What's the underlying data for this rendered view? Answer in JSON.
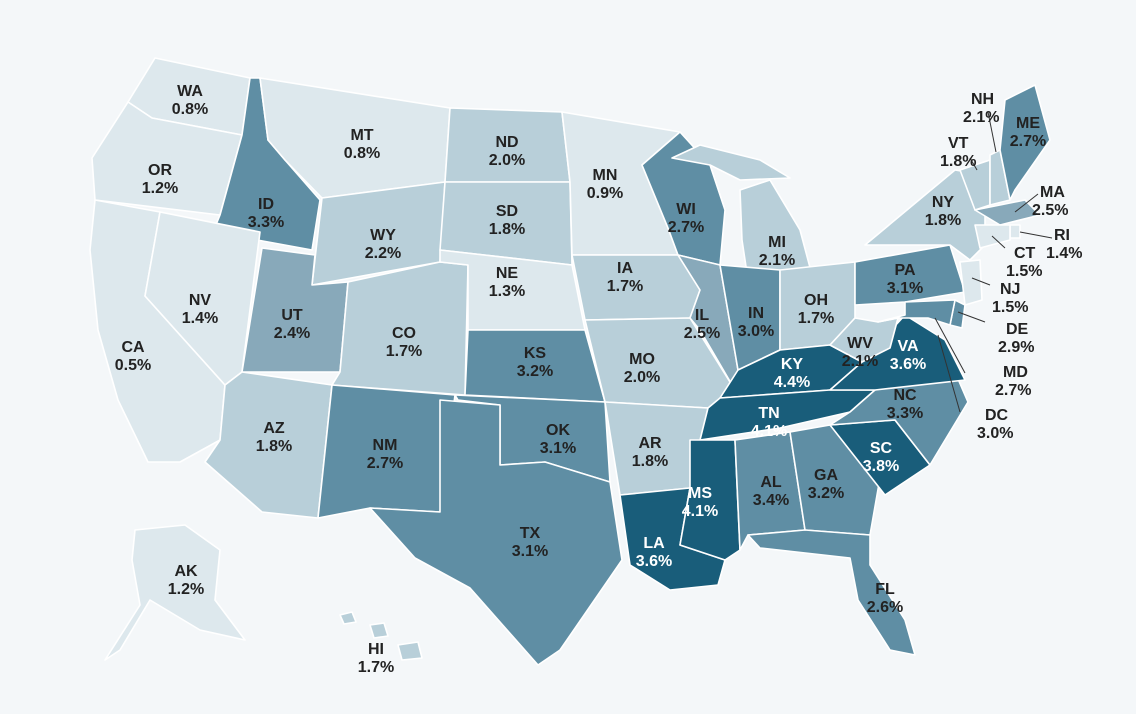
{
  "palette": {
    "level1": "#dde8ed",
    "level2": "#b8cfd9",
    "level3": "#88a9ba",
    "level4": "#5f8ea4",
    "level5": "#195d7a",
    "text_dark": "#222222",
    "text_light": "#ffffff"
  },
  "states": [
    {
      "code": "WA",
      "value": "0.8%",
      "rate": 0.8
    },
    {
      "code": "OR",
      "value": "1.2%",
      "rate": 1.2
    },
    {
      "code": "CA",
      "value": "0.5%",
      "rate": 0.5
    },
    {
      "code": "ID",
      "value": "3.3%",
      "rate": 3.3
    },
    {
      "code": "NV",
      "value": "1.4%",
      "rate": 1.4
    },
    {
      "code": "MT",
      "value": "0.8%",
      "rate": 0.8
    },
    {
      "code": "WY",
      "value": "2.2%",
      "rate": 2.2
    },
    {
      "code": "UT",
      "value": "2.4%",
      "rate": 2.4
    },
    {
      "code": "AZ",
      "value": "1.8%",
      "rate": 1.8
    },
    {
      "code": "CO",
      "value": "1.7%",
      "rate": 1.7
    },
    {
      "code": "NM",
      "value": "2.7%",
      "rate": 2.7
    },
    {
      "code": "ND",
      "value": "2.0%",
      "rate": 2.0
    },
    {
      "code": "SD",
      "value": "1.8%",
      "rate": 1.8
    },
    {
      "code": "NE",
      "value": "1.3%",
      "rate": 1.3
    },
    {
      "code": "KS",
      "value": "3.2%",
      "rate": 3.2
    },
    {
      "code": "OK",
      "value": "3.1%",
      "rate": 3.1
    },
    {
      "code": "TX",
      "value": "3.1%",
      "rate": 3.1
    },
    {
      "code": "MN",
      "value": "0.9%",
      "rate": 0.9
    },
    {
      "code": "IA",
      "value": "1.7%",
      "rate": 1.7
    },
    {
      "code": "MO",
      "value": "2.0%",
      "rate": 2.0
    },
    {
      "code": "AR",
      "value": "1.8%",
      "rate": 1.8
    },
    {
      "code": "LA",
      "value": "3.6%",
      "rate": 3.6
    },
    {
      "code": "WI",
      "value": "2.7%",
      "rate": 2.7
    },
    {
      "code": "IL",
      "value": "2.5%",
      "rate": 2.5
    },
    {
      "code": "MI",
      "value": "2.1%",
      "rate": 2.1
    },
    {
      "code": "IN",
      "value": "3.0%",
      "rate": 3.0
    },
    {
      "code": "OH",
      "value": "1.7%",
      "rate": 1.7
    },
    {
      "code": "KY",
      "value": "4.4%",
      "rate": 4.4
    },
    {
      "code": "TN",
      "value": "4.1%",
      "rate": 4.1
    },
    {
      "code": "MS",
      "value": "4.1%",
      "rate": 4.1
    },
    {
      "code": "AL",
      "value": "3.4%",
      "rate": 3.4
    },
    {
      "code": "GA",
      "value": "3.2%",
      "rate": 3.2
    },
    {
      "code": "FL",
      "value": "2.6%",
      "rate": 2.6
    },
    {
      "code": "SC",
      "value": "3.8%",
      "rate": 3.8
    },
    {
      "code": "NC",
      "value": "3.3%",
      "rate": 3.3
    },
    {
      "code": "VA",
      "value": "3.6%",
      "rate": 3.6
    },
    {
      "code": "WV",
      "value": "2.1%",
      "rate": 2.1
    },
    {
      "code": "PA",
      "value": "3.1%",
      "rate": 3.1
    },
    {
      "code": "NY",
      "value": "1.8%",
      "rate": 1.8
    },
    {
      "code": "VT",
      "value": "1.8%",
      "rate": 1.8
    },
    {
      "code": "NH",
      "value": "2.1%",
      "rate": 2.1
    },
    {
      "code": "ME",
      "value": "2.7%",
      "rate": 2.7
    },
    {
      "code": "MA",
      "value": "2.5%",
      "rate": 2.5
    },
    {
      "code": "RI",
      "value": "1.4%",
      "rate": 1.4
    },
    {
      "code": "CT",
      "value": "1.5%",
      "rate": 1.5
    },
    {
      "code": "NJ",
      "value": "1.5%",
      "rate": 1.5
    },
    {
      "code": "DE",
      "value": "2.9%",
      "rate": 2.9
    },
    {
      "code": "MD",
      "value": "2.7%",
      "rate": 2.7
    },
    {
      "code": "DC",
      "value": "3.0%",
      "rate": 3.0
    },
    {
      "code": "AK",
      "value": "1.2%",
      "rate": 1.2
    },
    {
      "code": "HI",
      "value": "1.7%",
      "rate": 1.7
    }
  ]
}
